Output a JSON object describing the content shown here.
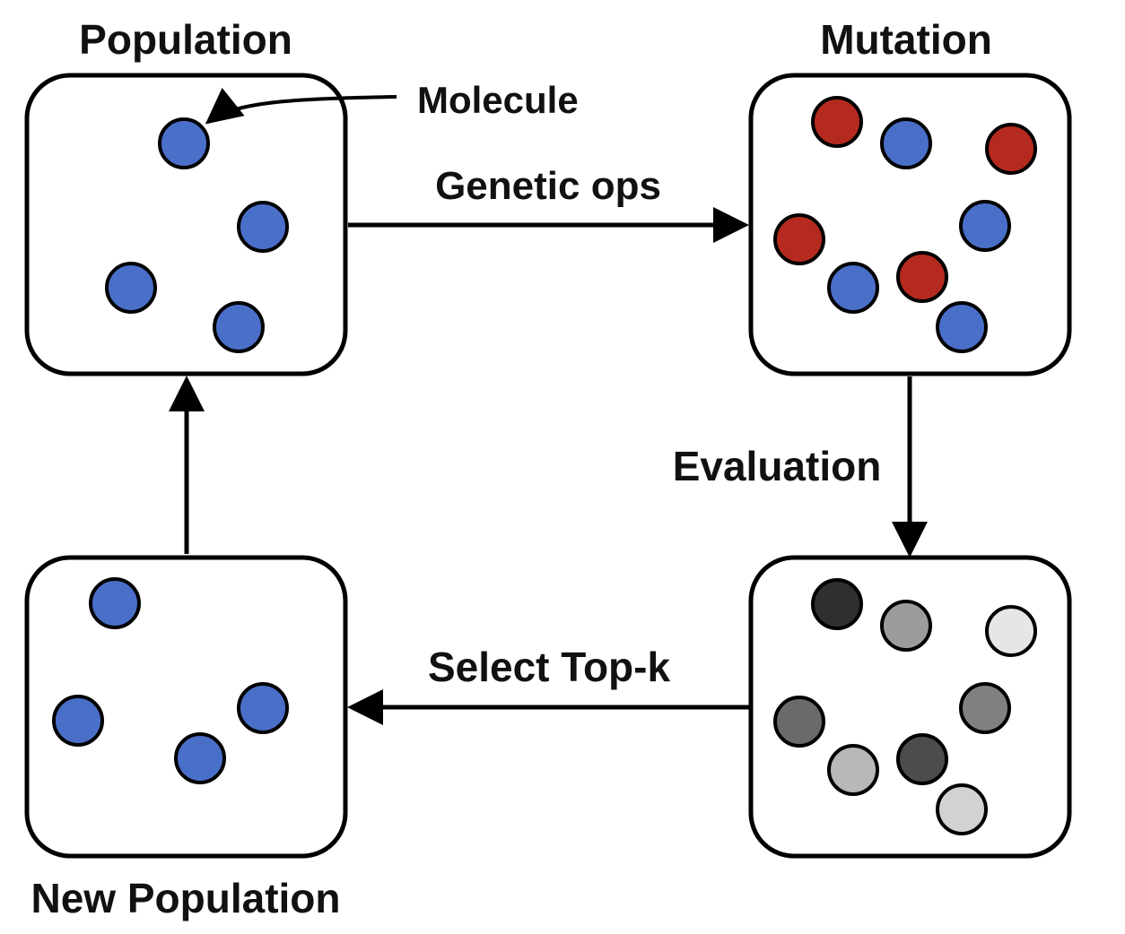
{
  "labels": {
    "population": "Population",
    "mutation": "Mutation",
    "new_population": "New Population",
    "molecule": "Molecule",
    "genetic_ops": "Genetic ops",
    "evaluation": "Evaluation",
    "select_top_k": "Select Top-k"
  },
  "colors": {
    "stroke": "#000000",
    "blue_molecule": "#4a6fc9",
    "red_molecule": "#b52a1e",
    "grays": [
      "#2f2f2f",
      "#4c4c4c",
      "#6a6a6a",
      "#808080",
      "#9c9c9c",
      "#b8b8b8",
      "#d2d2d2",
      "#e6e6e6"
    ]
  }
}
